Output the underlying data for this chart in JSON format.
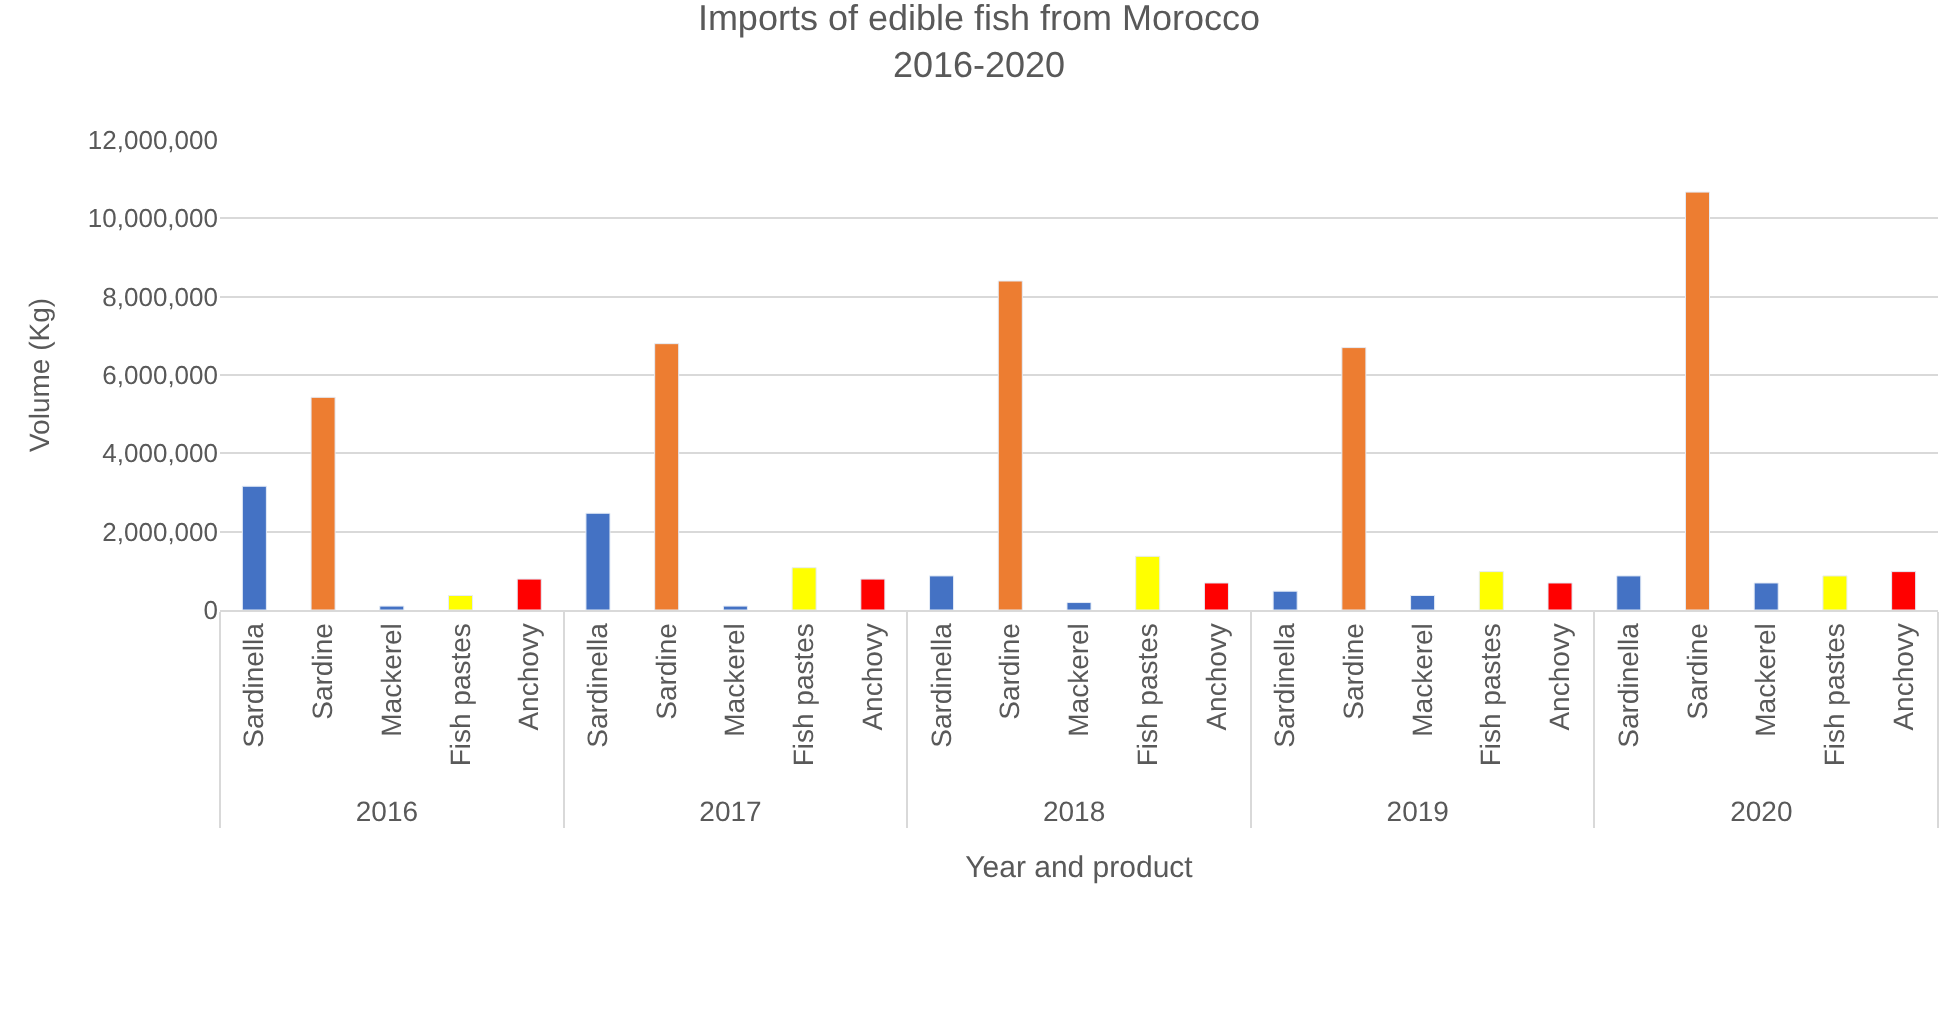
{
  "chart_data": {
    "type": "bar",
    "title": "Imports of edible fish from Morocco\n2016-2020",
    "xlabel": "Year and product",
    "ylabel": "Volume (Kg)",
    "categories": [
      "Sardinella",
      "Sardine",
      "Mackerel",
      "Fish pastes",
      "Anchovy",
      "Sardinella",
      "Sardine",
      "Mackerel",
      "Fish pastes",
      "Anchovy",
      "Sardinella",
      "Sardine",
      "Mackerel",
      "Fish pastes",
      "Anchovy",
      "Sardinella",
      "Sardine",
      "Mackerel",
      "Fish pastes",
      "Anchovy",
      "Sardinella",
      "Sardine",
      "Mackerel",
      "Fish pastes",
      "Anchovy"
    ],
    "values": [
      3160000,
      5430000,
      100000,
      370000,
      790000,
      2470000,
      6800000,
      100000,
      1080000,
      790000,
      870000,
      8400000,
      190000,
      1370000,
      690000,
      480000,
      6700000,
      370000,
      980000,
      690000,
      870000,
      10670000,
      690000,
      870000,
      980000
    ],
    "colors": [
      "#4472c4",
      "#ed7d31",
      "#4472c4",
      "#ffff00",
      "#ff0000",
      "#4472c4",
      "#ed7d31",
      "#4472c4",
      "#ffff00",
      "#ff0000",
      "#4472c4",
      "#ed7d31",
      "#4472c4",
      "#ffff00",
      "#ff0000",
      "#4472c4",
      "#ed7d31",
      "#4472c4",
      "#ffff00",
      "#ff0000",
      "#4472c4",
      "#ed7d31",
      "#4472c4",
      "#ffff00",
      "#ff0000"
    ],
    "annotations": [
      "2016",
      "2017",
      "2018",
      "2019",
      "2020"
    ],
    "ylim": [
      0,
      12000000
    ],
    "yticks": [
      0,
      {
        "value": 2000000,
        "label": "2,000,000"
      },
      {
        "value": 4000000,
        "label": "4,000,000"
      },
      {
        "value": 6000000,
        "label": "6,000,000"
      },
      {
        "value": 8000000,
        "label": "8,000,000"
      },
      {
        "value": 10000000,
        "label": "10,000,000"
      },
      {
        "value": 12000000,
        "label": "12,000,000"
      }
    ],
    "grid": "y"
  }
}
